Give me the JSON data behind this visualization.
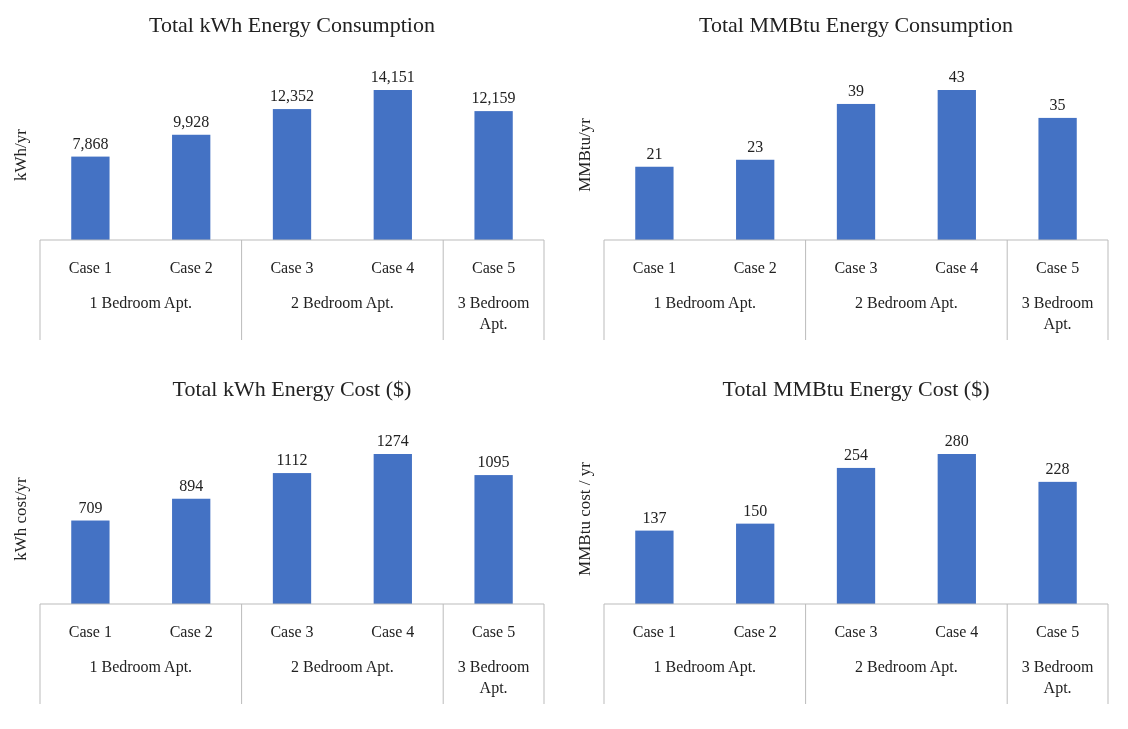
{
  "chart_data": [
    {
      "type": "bar",
      "title": "Total kWh Energy Consumption",
      "ylabel": "kWh/yr",
      "categories": [
        "Case 1",
        "Case 2",
        "Case 3",
        "Case 4",
        "Case 5"
      ],
      "values": [
        7868,
        9928,
        12352,
        14151,
        12159
      ],
      "value_labels": [
        "7,868",
        "9,928",
        "12,352",
        "14,151",
        "12,159"
      ],
      "color": "#4472c4",
      "grid": false,
      "annotations": [
        "1 Bedroom Apt.",
        "2 Bedroom Apt.",
        "3 Bedroom Apt."
      ]
    },
    {
      "type": "bar",
      "title": "Total MMBtu Energy Consumption",
      "ylabel": "MMBtu/yr",
      "categories": [
        "Case 1",
        "Case 2",
        "Case 3",
        "Case 4",
        "Case 5"
      ],
      "values": [
        21,
        23,
        39,
        43,
        35
      ],
      "data_labels": true,
      "color": "#4472c4",
      "grid": false,
      "annotations": [
        "1 Bedroom Apt.",
        "2 Bedroom Apt.",
        "3 Bedroom Apt."
      ]
    },
    {
      "type": "bar",
      "title": "Total kWh Energy Cost ($)",
      "ylabel": "kWh cost/yr",
      "categories": [
        "Case 1",
        "Case 2",
        "Case 3",
        "Case 4",
        "Case 5"
      ],
      "values": [
        709,
        894,
        1112,
        1274,
        1095
      ],
      "data_labels": true,
      "color": "#4472c4",
      "grid": false,
      "annotations": [
        "1 Bedroom Apt.",
        "2 Bedroom Apt.",
        "3 Bedroom Apt."
      ]
    },
    {
      "type": "bar",
      "title": "Total MMBtu Energy Cost ($)",
      "ylabel": "MMBtu cost / yr",
      "categories": [
        "Case 1",
        "Case 2",
        "Case 3",
        "Case 4",
        "Case 5"
      ],
      "values": [
        137,
        150,
        254,
        280,
        228
      ],
      "data_labels": true,
      "color": "#4472c4",
      "grid": false,
      "annotations": [
        "1 Bedroom Apt.",
        "2 Bedroom Apt.",
        "3 Bedroom Apt."
      ]
    }
  ]
}
